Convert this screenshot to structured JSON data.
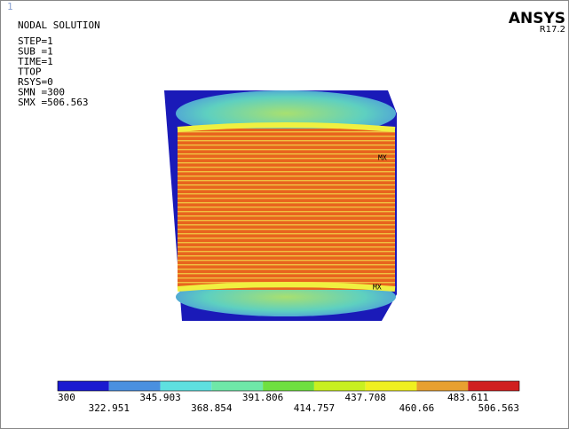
{
  "window_number": "1",
  "header": {
    "title": "NODAL SOLUTION",
    "lines": [
      "STEP=1",
      "SUB =1",
      "TIME=1",
      "TTOP",
      "RSYS=0",
      "SMN =300",
      "SMX =506.563"
    ]
  },
  "logo": {
    "brand": "ANSYS",
    "version": "R17.2"
  },
  "markers": [
    "MX",
    "MX"
  ],
  "legend": {
    "labels": [
      "300",
      "322.951",
      "345.903",
      "368.854",
      "391.806",
      "414.757",
      "437.708",
      "460.66",
      "483.611",
      "506.563"
    ],
    "colors": [
      "#1a1ad0",
      "#4a90e0",
      "#5ee0e0",
      "#6fe8a8",
      "#6fe040",
      "#c8f020",
      "#f0f020",
      "#e8a030",
      "#d02020"
    ]
  }
}
